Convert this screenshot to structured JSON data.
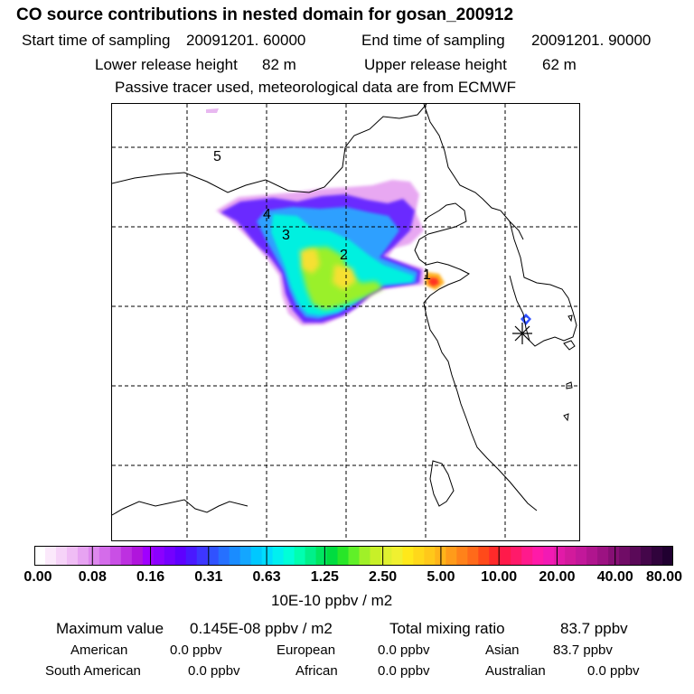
{
  "title": "CO  source contributions in nested domain for gosan_200912",
  "header": {
    "start_label": "Start time of sampling",
    "start_value": "20091201. 60000",
    "end_label": "End time of sampling",
    "end_value": "20091201. 90000",
    "lower_label": "Lower release height",
    "lower_value": "82 m",
    "upper_label": "Upper release height",
    "upper_value": "62 m",
    "note": "Passive tracer used, meteorological data are from ECMWF"
  },
  "map": {
    "source_labels": [
      "1",
      "2",
      "3",
      "4",
      "5"
    ],
    "receptor_symbol": "*"
  },
  "colorbar": {
    "ticks": [
      "0.00",
      "0.08",
      "0.16",
      "0.31",
      "0.63",
      "1.25",
      "2.50",
      "5.00",
      "10.00",
      "20.00",
      "40.00",
      "80.00"
    ],
    "unit": "10E-10 ppbv / m2",
    "colors": [
      "#ffffff",
      "#fbe9fb",
      "#f6d3f8",
      "#f0bdf5",
      "#e7a3f2",
      "#de88ee",
      "#d46cea",
      "#c94fe5",
      "#bd30e0",
      "#b015dc",
      "#a000ff",
      "#8b00ff",
      "#7400ff",
      "#5e00ff",
      "#4a18ff",
      "#3d36ff",
      "#3052ff",
      "#2670ff",
      "#1a8cff",
      "#14a6ff",
      "#00c8ff",
      "#00dcff",
      "#00f0f0",
      "#00ffd8",
      "#00ffb0",
      "#00f08a",
      "#00e660",
      "#00dc40",
      "#28e628",
      "#60f028",
      "#a0f028",
      "#c8f028",
      "#e0f030",
      "#f0f030",
      "#ffe81a",
      "#ffd81a",
      "#ffc81a",
      "#ffb41a",
      "#ff9b1a",
      "#ff821a",
      "#ff6a1a",
      "#ff4a1a",
      "#ff2a2a",
      "#ff1a4a",
      "#ff1a6a",
      "#ff1a8c",
      "#ff1aa8",
      "#f21ab4",
      "#e21aa8",
      "#d21a9c",
      "#c2189a",
      "#b0158e",
      "#9c1282",
      "#860f74",
      "#700c66",
      "#5a0958",
      "#44064a",
      "#30033c",
      "#200030"
    ]
  },
  "summary": {
    "max_label": "Maximum value",
    "max_value": "0.145E-08 ppbv / m2",
    "total_label": "Total mixing ratio",
    "total_value": "83.7 ppbv",
    "regions": [
      {
        "name": "American",
        "value": "0.0 ppbv"
      },
      {
        "name": "European",
        "value": "0.0 ppbv"
      },
      {
        "name": "Asian",
        "value": "83.7 ppbv"
      },
      {
        "name": "South American",
        "value": "0.0 ppbv"
      },
      {
        "name": "African",
        "value": "0.0 ppbv"
      },
      {
        "name": "Australian",
        "value": "0.0 ppbv"
      }
    ]
  }
}
